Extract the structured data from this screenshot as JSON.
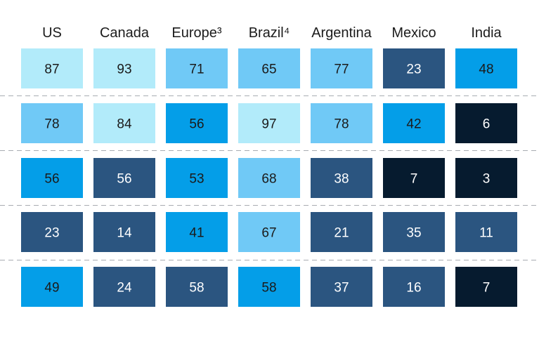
{
  "chart_data": {
    "type": "heatmap",
    "title": "",
    "columns": [
      "US",
      "Canada",
      "Europe³",
      "Brazil⁴",
      "Argentina",
      "Mexico",
      "India"
    ],
    "rows": [
      [
        87,
        93,
        71,
        65,
        77,
        23,
        48
      ],
      [
        78,
        84,
        56,
        97,
        78,
        42,
        6
      ],
      [
        56,
        56,
        53,
        68,
        38,
        7,
        3
      ],
      [
        23,
        14,
        41,
        67,
        21,
        35,
        11
      ],
      [
        49,
        24,
        58,
        58,
        37,
        16,
        7
      ]
    ],
    "row_dividers": true
  },
  "cell_colors": [
    [
      "#b2ebfa",
      "#b2ebfa",
      "#70c9f6",
      "#70c9f6",
      "#70c9f6",
      "#2b5580",
      "#049ee8"
    ],
    [
      "#70c9f6",
      "#b2ebfa",
      "#049ee8",
      "#b2ebfa",
      "#70c9f6",
      "#049ee8",
      "#061b2f"
    ],
    [
      "#049ee8",
      "#2b5580",
      "#049ee8",
      "#70c9f6",
      "#2b5580",
      "#061b2f",
      "#061b2f"
    ],
    [
      "#2b5580",
      "#2b5580",
      "#049ee8",
      "#70c9f6",
      "#2b5580",
      "#2b5580",
      "#2b5580"
    ],
    [
      "#049ee8",
      "#2b5580",
      "#2b5580",
      "#049ee8",
      "#2b5580",
      "#2b5580",
      "#061b2f"
    ]
  ],
  "text_colors": {
    "light": "#1b1b1b",
    "dark": "#ffffff"
  },
  "dark_fills": [
    "#2b5580",
    "#061b2f"
  ]
}
